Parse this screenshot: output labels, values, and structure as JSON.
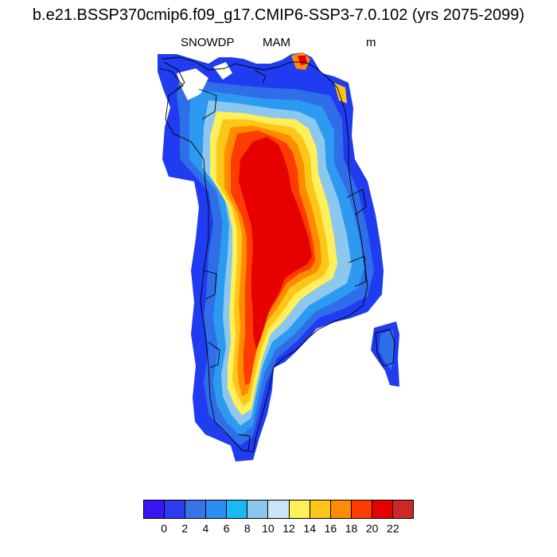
{
  "header": {
    "title": "b.e21.BSSP370cmip6.f09_g17.CMIP6-SSP3-7.0.102 (yrs 2075-2099)",
    "variable": "SNOWDP",
    "season": "MAM",
    "units": "m"
  },
  "colorbar": {
    "colors": [
      "#3a14f5",
      "#2a3bf0",
      "#3c72e8",
      "#2b8ef0",
      "#1ab8f5",
      "#8cc8ee",
      "#c8e6f5",
      "#ffef5a",
      "#ffc61a",
      "#ff8c00",
      "#ff3c00",
      "#e60000",
      "#cc2828"
    ],
    "tick_labels": [
      "0",
      "2",
      "4",
      "6",
      "8",
      "10",
      "12",
      "14",
      "16",
      "18",
      "20",
      "22"
    ]
  },
  "map": {
    "region": "Greenland",
    "colors": {
      "dark_blue": "#1f3cf0",
      "blue": "#2f6ee8",
      "mid_blue": "#2b9af0",
      "light_blue": "#8cc8ee",
      "pale_blue": "#c8e6f5",
      "yellow": "#ffef5a",
      "gold": "#ffc61a",
      "orange": "#ff8c00",
      "orange_red": "#ff3c00",
      "red": "#e60000"
    }
  }
}
